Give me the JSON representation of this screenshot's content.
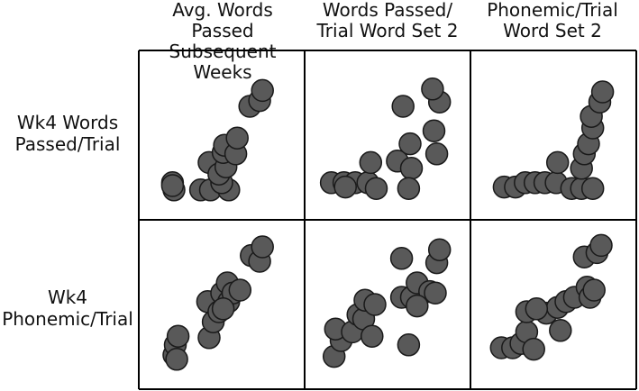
{
  "columns": [
    {
      "label": "Avg. Words Passed\nSubsequent Weeks"
    },
    {
      "label": "Words Passed/\nTrial Word Set 2"
    },
    {
      "label": "Phonemic/Trial\nWord Set 2"
    }
  ],
  "rows": [
    {
      "label": "Wk4 Words\nPassed/Trial"
    },
    {
      "label": "Wk4\nPhonemic/Trial"
    }
  ],
  "style": {
    "point_fill": "#595959",
    "point_stroke": "#1a1a1a",
    "frame_color": "#000000"
  },
  "chart_data": {
    "type": "scatter",
    "xlabel": "",
    "ylabel": "",
    "grid": false,
    "panels": [
      {
        "row": 0,
        "col": 0,
        "xlim": [
          0,
          1
        ],
        "ylim": [
          0,
          1
        ],
        "points": [
          [
            0.15,
            0.17
          ],
          [
            0.16,
            0.12
          ],
          [
            0.15,
            0.15
          ],
          [
            0.35,
            0.12
          ],
          [
            0.42,
            0.12
          ],
          [
            0.55,
            0.12
          ],
          [
            0.5,
            0.17
          ],
          [
            0.41,
            0.31
          ],
          [
            0.48,
            0.23
          ],
          [
            0.53,
            0.28
          ],
          [
            0.51,
            0.38
          ],
          [
            0.52,
            0.43
          ],
          [
            0.6,
            0.37
          ],
          [
            0.61,
            0.48
          ],
          [
            0.7,
            0.7
          ],
          [
            0.77,
            0.74
          ],
          [
            0.79,
            0.81
          ]
        ]
      },
      {
        "row": 0,
        "col": 1,
        "xlim": [
          0,
          1
        ],
        "ylim": [
          0,
          1
        ],
        "points": [
          [
            0.1,
            0.17
          ],
          [
            0.19,
            0.17
          ],
          [
            0.27,
            0.17
          ],
          [
            0.36,
            0.17
          ],
          [
            0.42,
            0.13
          ],
          [
            0.2,
            0.14
          ],
          [
            0.38,
            0.31
          ],
          [
            0.57,
            0.32
          ],
          [
            0.67,
            0.27
          ],
          [
            0.66,
            0.44
          ],
          [
            0.61,
            0.7
          ],
          [
            0.83,
            0.53
          ],
          [
            0.85,
            0.37
          ],
          [
            0.87,
            0.73
          ],
          [
            0.82,
            0.82
          ],
          [
            0.65,
            0.13
          ]
        ]
      },
      {
        "row": 0,
        "col": 2,
        "xlim": [
          0,
          1
        ],
        "ylim": [
          0,
          1
        ],
        "points": [
          [
            0.15,
            0.14
          ],
          [
            0.23,
            0.14
          ],
          [
            0.3,
            0.17
          ],
          [
            0.37,
            0.17
          ],
          [
            0.44,
            0.17
          ],
          [
            0.52,
            0.17
          ],
          [
            0.63,
            0.13
          ],
          [
            0.7,
            0.13
          ],
          [
            0.78,
            0.13
          ],
          [
            0.53,
            0.31
          ],
          [
            0.7,
            0.27
          ],
          [
            0.72,
            0.37
          ],
          [
            0.75,
            0.44
          ],
          [
            0.78,
            0.55
          ],
          [
            0.77,
            0.63
          ],
          [
            0.83,
            0.73
          ],
          [
            0.85,
            0.8
          ]
        ]
      },
      {
        "row": 1,
        "col": 0,
        "xlim": [
          0,
          1
        ],
        "ylim": [
          0,
          1
        ],
        "points": [
          [
            0.16,
            0.15
          ],
          [
            0.17,
            0.22
          ],
          [
            0.19,
            0.28
          ],
          [
            0.18,
            0.12
          ],
          [
            0.41,
            0.27
          ],
          [
            0.44,
            0.38
          ],
          [
            0.4,
            0.52
          ],
          [
            0.48,
            0.45
          ],
          [
            0.5,
            0.58
          ],
          [
            0.54,
            0.65
          ],
          [
            0.55,
            0.52
          ],
          [
            0.58,
            0.58
          ],
          [
            0.63,
            0.6
          ],
          [
            0.51,
            0.47
          ],
          [
            0.71,
            0.84
          ],
          [
            0.77,
            0.8
          ],
          [
            0.79,
            0.9
          ]
        ]
      },
      {
        "row": 1,
        "col": 1,
        "xlim": [
          0,
          1
        ],
        "ylim": [
          0,
          1
        ],
        "points": [
          [
            0.12,
            0.14
          ],
          [
            0.17,
            0.25
          ],
          [
            0.13,
            0.33
          ],
          [
            0.25,
            0.31
          ],
          [
            0.29,
            0.43
          ],
          [
            0.33,
            0.4
          ],
          [
            0.34,
            0.53
          ],
          [
            0.41,
            0.5
          ],
          [
            0.39,
            0.28
          ],
          [
            0.6,
            0.55
          ],
          [
            0.67,
            0.55
          ],
          [
            0.71,
            0.65
          ],
          [
            0.8,
            0.59
          ],
          [
            0.84,
            0.58
          ],
          [
            0.71,
            0.49
          ],
          [
            0.85,
            0.79
          ],
          [
            0.87,
            0.88
          ],
          [
            0.6,
            0.82
          ],
          [
            0.65,
            0.22
          ]
        ]
      },
      {
        "row": 1,
        "col": 2,
        "xlim": [
          0,
          1
        ],
        "ylim": [
          0,
          1
        ],
        "points": [
          [
            0.13,
            0.2
          ],
          [
            0.21,
            0.2
          ],
          [
            0.27,
            0.23
          ],
          [
            0.31,
            0.31
          ],
          [
            0.36,
            0.19
          ],
          [
            0.45,
            0.44
          ],
          [
            0.53,
            0.48
          ],
          [
            0.59,
            0.52
          ],
          [
            0.65,
            0.55
          ],
          [
            0.55,
            0.32
          ],
          [
            0.74,
            0.62
          ],
          [
            0.76,
            0.55
          ],
          [
            0.72,
            0.83
          ],
          [
            0.79,
            0.6
          ],
          [
            0.81,
            0.86
          ],
          [
            0.84,
            0.91
          ],
          [
            0.31,
            0.45
          ],
          [
            0.38,
            0.47
          ]
        ]
      }
    ]
  }
}
